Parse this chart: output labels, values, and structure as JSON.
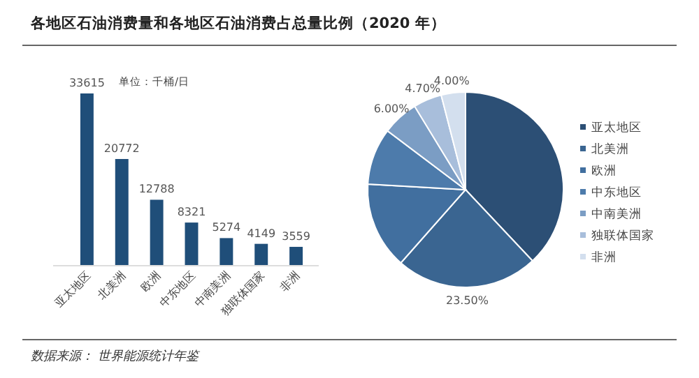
{
  "chart_data": [
    {
      "type": "bar",
      "title": "各地区石油消费量和各地区石油消费占总量比例（2020 年）",
      "categories": [
        "亚太地区",
        "北美洲",
        "欧洲",
        "中东地区",
        "中南美洲",
        "独联体国家",
        "非洲"
      ],
      "values": [
        33615,
        20772,
        12788,
        8321,
        5274,
        4149,
        3559
      ],
      "color": "#1f4e79",
      "data_labels": true,
      "annotations": [
        "单位：千桶/日",
        "数据来源： 世界能源统计年鉴"
      ]
    },
    {
      "type": "pie",
      "categories": [
        "亚太地区",
        "北美洲",
        "欧洲",
        "中东地区",
        "中南美洲",
        "独联体国家",
        "非洲"
      ],
      "values": [
        38.0,
        23.5,
        14.4,
        9.4,
        6.0,
        4.7,
        4.0
      ],
      "colors": [
        "#2c4f75",
        "#3a6591",
        "#416f9f",
        "#4d7bab",
        "#7b9dc4",
        "#a8bedb",
        "#d3dfee"
      ],
      "value_labels": [
        null,
        "23.50%",
        null,
        null,
        "6.00%",
        "4.70%",
        "4.00%"
      ],
      "legend": "right"
    }
  ]
}
